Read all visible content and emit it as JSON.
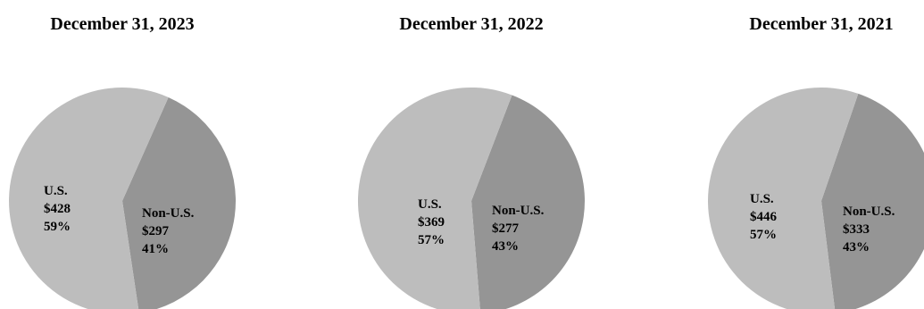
{
  "colors": {
    "us_slice": "#bdbdbd",
    "non_us_slice": "#959595",
    "text": "#000000"
  },
  "chart_data": [
    {
      "type": "pie",
      "title": "December 31, 2023",
      "slices": [
        {
          "label": "U.S.",
          "amount": "$428",
          "percent": "59%",
          "value": 428
        },
        {
          "label": "Non-U.S.",
          "amount": "$297",
          "percent": "41%",
          "value": 297
        }
      ]
    },
    {
      "type": "pie",
      "title": "December 31, 2022",
      "slices": [
        {
          "label": "U.S.",
          "amount": "$369",
          "percent": "57%",
          "value": 369
        },
        {
          "label": "Non-U.S.",
          "amount": "$277",
          "percent": "43%",
          "value": 277
        }
      ]
    },
    {
      "type": "pie",
      "title": "December 31, 2021",
      "slices": [
        {
          "label": "U.S.",
          "amount": "$446",
          "percent": "57%",
          "value": 446
        },
        {
          "label": "Non-U.S.",
          "amount": "$333",
          "percent": "43%",
          "value": 333
        }
      ]
    }
  ]
}
